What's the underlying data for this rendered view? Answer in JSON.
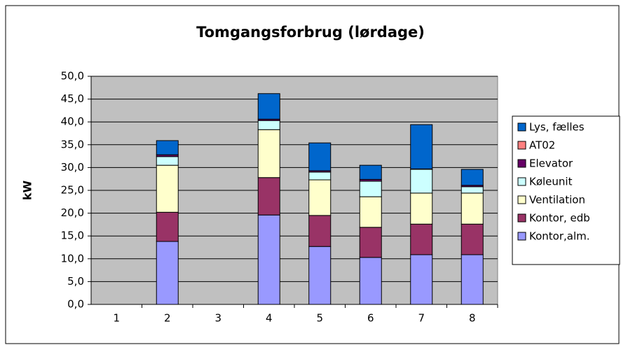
{
  "chart_data": {
    "type": "stacked_bar",
    "title": "Tomgangsforbrug (lørdage)",
    "y_label": "kW",
    "categories": [
      "1",
      "2",
      "3",
      "4",
      "5",
      "6",
      "7",
      "8"
    ],
    "series": [
      {
        "name": "Kontor,alm.",
        "color": "#9999ff",
        "values": [
          0,
          13.8,
          0,
          19.6,
          12.7,
          10.3,
          10.9,
          10.9
        ]
      },
      {
        "name": "Kontor, edb",
        "color": "#993366",
        "values": [
          0,
          6.4,
          0,
          8.2,
          6.8,
          6.6,
          6.7,
          6.7
        ]
      },
      {
        "name": "Ventilation",
        "color": "#ffffcc",
        "values": [
          0,
          10.3,
          0,
          10.5,
          7.8,
          6.7,
          6.8,
          6.8
        ]
      },
      {
        "name": "Køleunit",
        "color": "#ccffff",
        "values": [
          0,
          1.9,
          0,
          2.0,
          1.7,
          3.4,
          5.2,
          1.4
        ]
      },
      {
        "name": "Elevator",
        "color": "#660066",
        "values": [
          0,
          0.4,
          0,
          0.3,
          0.3,
          0.4,
          0.1,
          0.3
        ]
      },
      {
        "name": "AT02",
        "color": "#ff8080",
        "values": [
          0,
          0,
          0,
          0,
          0,
          0,
          0,
          0
        ]
      },
      {
        "name": "Lys, fælles",
        "color": "#0066cc",
        "values": [
          0,
          3.1,
          0,
          5.6,
          6.1,
          3.1,
          9.7,
          3.5
        ]
      }
    ],
    "ylim": [
      0,
      50
    ],
    "yticks": [
      {
        "value": 0,
        "label": "0,0"
      },
      {
        "value": 5,
        "label": "5,0"
      },
      {
        "value": 10,
        "label": "10,0"
      },
      {
        "value": 15,
        "label": "15,0"
      },
      {
        "value": 20,
        "label": "20,0"
      },
      {
        "value": 25,
        "label": "25,0"
      },
      {
        "value": 30,
        "label": "30,0"
      },
      {
        "value": 35,
        "label": "35,0"
      },
      {
        "value": 40,
        "label": "40,0"
      },
      {
        "value": 45,
        "label": "45,0"
      },
      {
        "value": 50,
        "label": "50,0"
      }
    ],
    "grid": true,
    "plot_background": "#c0c0c0",
    "legend": "right"
  }
}
